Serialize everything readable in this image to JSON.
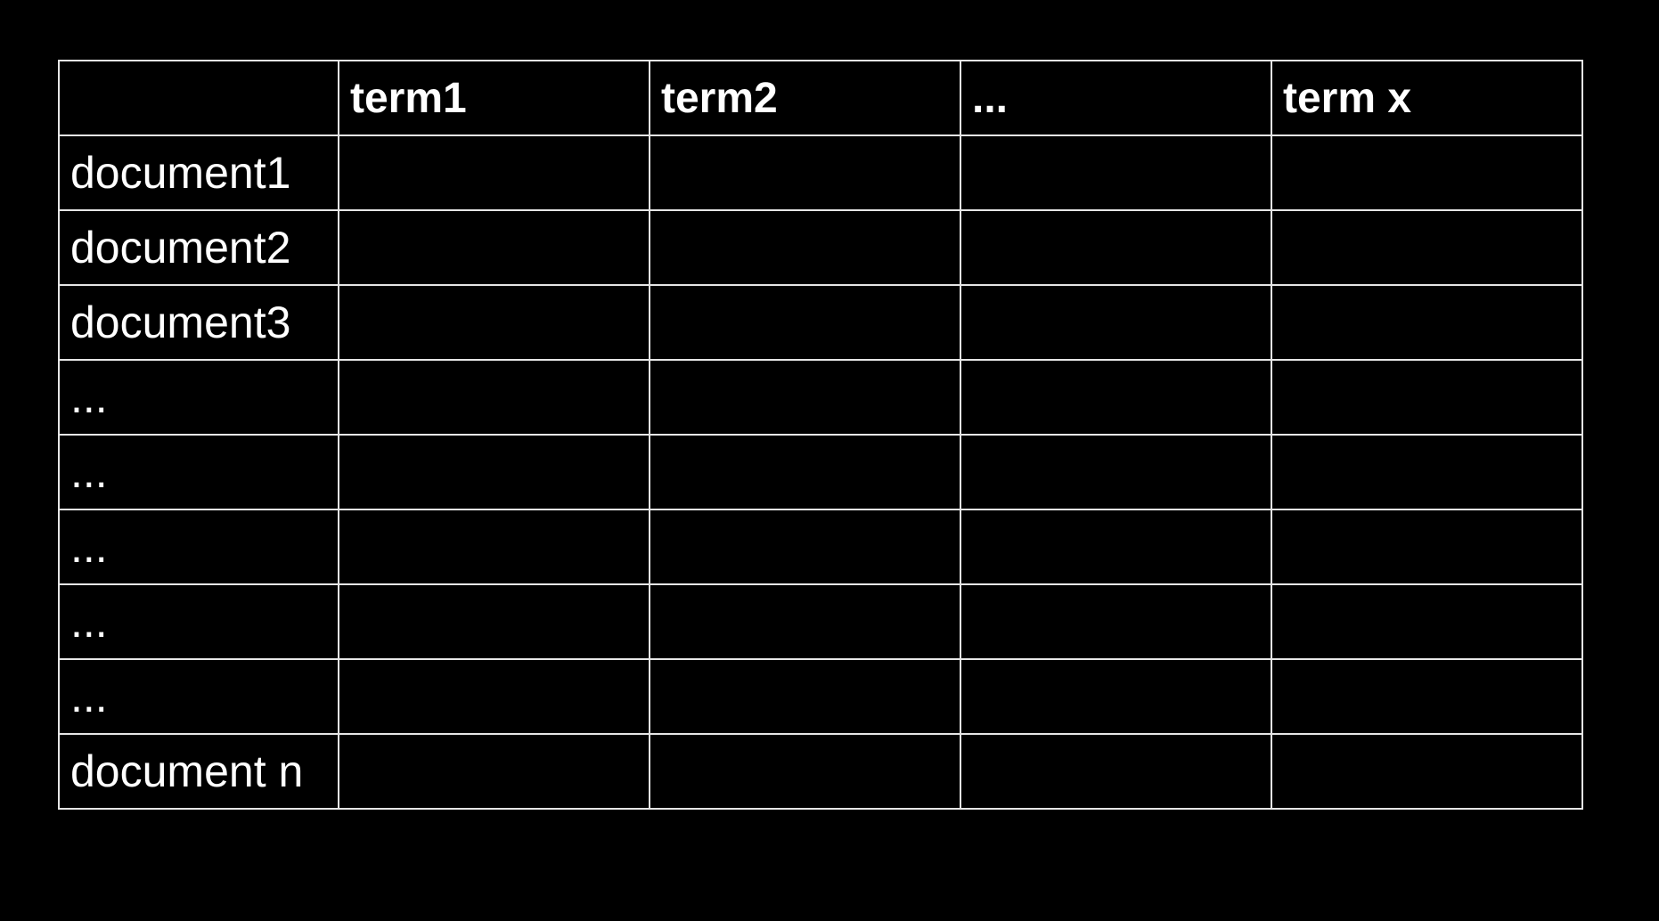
{
  "table": {
    "headers": [
      "",
      "term1",
      "term2",
      "...",
      "term x"
    ],
    "rows": [
      "document1",
      "document2",
      "document3",
      "...",
      "...",
      "...",
      "...",
      "...",
      "document n"
    ]
  }
}
